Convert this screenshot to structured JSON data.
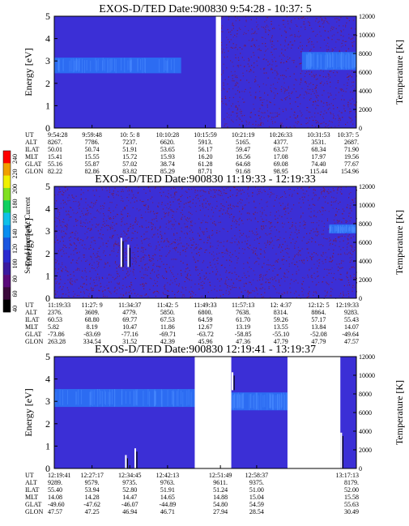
{
  "colors": {
    "background": "#3b2fd6",
    "gap": "#ffffff",
    "band": "#2c6cf2",
    "noise": "#7a1a48",
    "line": "#000000"
  },
  "colorbar": {
    "label": "Second Harmonic Current",
    "ticks": [
      "40",
      "60",
      "80",
      "100",
      "120",
      "140",
      "160",
      "180",
      "200",
      "220",
      "240"
    ],
    "colors": [
      "#000000",
      "#3a0a3a",
      "#5a0a7a",
      "#3a1aa0",
      "#2a2ad0",
      "#1a56e0",
      "#0a8ef0",
      "#10c0e8",
      "#10d060",
      "#80e020",
      "#f0f000",
      "#f0a000",
      "#ff0000"
    ]
  },
  "chart_data": [
    {
      "type": "heatmap",
      "title": "EXOS-D/TED   Date:900830  9:54:28 - 10:37: 5",
      "ylabel": "Energy [eV]",
      "ylabel_right": "Temperature [K]",
      "ylim": [
        0,
        5
      ],
      "ylim_right": [
        0,
        12000
      ],
      "yticks": [
        "0",
        "1",
        "2",
        "3",
        "4",
        "5"
      ],
      "yticks_right": [
        "0",
        "2000",
        "4000",
        "6000",
        "8000",
        "10000",
        "12000"
      ],
      "gaps": [
        [
          0.535,
          0.552
        ]
      ],
      "band": {
        "x": [
          0.0,
          0.42
        ],
        "y": [
          2.45,
          3.15
        ]
      },
      "band2": {
        "x": [
          0.82,
          1.0
        ],
        "y": [
          2.6,
          3.4
        ]
      },
      "noise": [
        {
          "x": [
            0.55,
            1.0
          ],
          "y": [
            0.0,
            5.0
          ],
          "density": 0.5
        }
      ],
      "table": {
        "row_labels": [
          "UT",
          "ALT",
          "ILAT",
          "MLT",
          "GLAT",
          "GLON"
        ],
        "columns": [
          [
            "9:54:28",
            "8267.",
            "50.01",
            "15.41",
            "55.16",
            "82.22"
          ],
          [
            "9:59:48",
            "7786.",
            "50.74",
            "15.55",
            "55.87",
            "82.86"
          ],
          [
            "10: 5: 8",
            "7237.",
            "51.91",
            "15.72",
            "57.02",
            "83.82"
          ],
          [
            "10:10:28",
            "6620.",
            "53.65",
            "15.93",
            "38.74",
            "85.29"
          ],
          [
            "10:15:59",
            "5913.",
            "56.17",
            "16.20",
            "61.28",
            "87.71"
          ],
          [
            "10:21:19",
            "5165.",
            "59.47",
            "16.56",
            "64.68",
            "91.68"
          ],
          [
            "10:26:33",
            "4377.",
            "63.57",
            "17.08",
            "69.08",
            "98.95"
          ],
          [
            "10:31:53",
            "3531.",
            "68.34",
            "17.97",
            "74.40",
            "115.44"
          ],
          [
            "10:37: 5",
            "2687.",
            "71.90",
            "19.56",
            "77.67",
            "154.96"
          ]
        ]
      }
    },
    {
      "type": "heatmap",
      "title": "EXOS-D/TED   Date:900830  11:19:33 - 12:19:33",
      "ylabel": "Energy [eV]",
      "ylabel_right": "Temperature [K]",
      "ylim": [
        0,
        5
      ],
      "ylim_right": [
        0,
        12000
      ],
      "yticks": [
        "0",
        "1",
        "2",
        "3",
        "4",
        "5"
      ],
      "yticks_right": [
        "0",
        "2000",
        "4000",
        "6000",
        "8000",
        "10000",
        "12000"
      ],
      "gaps": [],
      "band": {
        "x": [
          0.91,
          1.0
        ],
        "y": [
          2.9,
          3.3
        ]
      },
      "noise": [
        {
          "x": [
            0.0,
            1.0
          ],
          "y": [
            0.0,
            5.0
          ],
          "density": 0.55
        }
      ],
      "spikes": [
        {
          "x": 0.222,
          "y": [
            1.4,
            2.7
          ]
        },
        {
          "x": 0.245,
          "y": [
            1.4,
            2.4
          ]
        }
      ],
      "table": {
        "row_labels": [
          "UT",
          "ALT",
          "ILAT",
          "MLT",
          "GLAT",
          "GLON"
        ],
        "columns": [
          [
            "11:19:33",
            "2376.",
            "60.53",
            "5.82",
            "-73.86",
            "263.28"
          ],
          [
            "11:27: 9",
            "3609.",
            "68.80",
            "8.19",
            "-83.69",
            "334.54"
          ],
          [
            "11:34:37",
            "4779.",
            "69.77",
            "10.47",
            "-77.16",
            "31.52"
          ],
          [
            "11:42: 5",
            "5850.",
            "67.53",
            "11.86",
            "-69.71",
            "42.39"
          ],
          [
            "11:49:33",
            "6800.",
            "64.59",
            "12.67",
            "-63.72",
            "45.96"
          ],
          [
            "11:57:13",
            "7638.",
            "61.70",
            "13.19",
            "-58.85",
            "47.36"
          ],
          [
            "12: 4:37",
            "8314.",
            "59.26",
            "13.55",
            "-55.10",
            "47.79"
          ],
          [
            "12:12: 5",
            "8864.",
            "57.17",
            "13.84",
            "-52.08",
            "47.79"
          ],
          [
            "12:19:33",
            "9283.",
            "55.43",
            "14.07",
            "-49.64",
            "47.57"
          ]
        ]
      }
    },
    {
      "type": "heatmap",
      "title": "EXOS-D/TED   Date:900830  12:19:41 - 13:19:37",
      "ylabel": "Energy [eV]",
      "ylabel_right": "Temperature [K]",
      "ylim": [
        0,
        5
      ],
      "ylim_right": [
        0,
        12000
      ],
      "yticks": [
        "0",
        "1",
        "2",
        "3",
        "4",
        "5"
      ],
      "yticks_right": [
        "0",
        "2000",
        "4000",
        "6000",
        "8000",
        "10000",
        "12000"
      ],
      "gaps": [
        [
          0.465,
          0.586
        ],
        [
          0.772,
          0.947
        ]
      ],
      "band": {
        "x": [
          0.0,
          0.465
        ],
        "y": [
          2.75,
          3.55
        ]
      },
      "band2": {
        "x": [
          0.586,
          0.772
        ],
        "y": [
          2.6,
          3.4
        ]
      },
      "spikes": [
        {
          "x": 0.237,
          "y": [
            0.0,
            0.6
          ]
        },
        {
          "x": 0.268,
          "y": [
            0.0,
            0.9
          ]
        },
        {
          "x": 0.59,
          "y": [
            3.5,
            4.3
          ]
        },
        {
          "x": 0.95,
          "y": [
            0.0,
            1.6
          ]
        }
      ],
      "table": {
        "row_labels": [
          "UT",
          "ALT",
          "ILAT",
          "MLT",
          "GLAT",
          "GLON"
        ],
        "columns": [
          [
            "12:19:41",
            "9289.",
            "55.40",
            "14.08",
            "-49.60",
            "47.57"
          ],
          [
            "12:27:17",
            "9579.",
            "53.94",
            "14.28",
            "-47.62",
            "47.25"
          ],
          [
            "12:34:45",
            "9735.",
            "52.80",
            "14.47",
            "-46.07",
            "46.94"
          ],
          [
            "12:42:13",
            "9763.",
            "51.91",
            "14.65",
            "-44.89",
            "46.71"
          ],
          [
            "12:51:49",
            "9611.",
            "51.24",
            "14.88",
            "54.80",
            "27.94"
          ],
          [
            "12:58:37",
            "9375.",
            "51.00",
            "15.04",
            "54.59",
            "28.54"
          ],
          [
            "13:17:13",
            "8179.",
            "52.00",
            "15.58",
            "55.63",
            "30.49"
          ]
        ],
        "col_pos": [
          0.0,
          0.125,
          0.25,
          0.375,
          0.55,
          0.67,
          1.0
        ]
      }
    }
  ]
}
